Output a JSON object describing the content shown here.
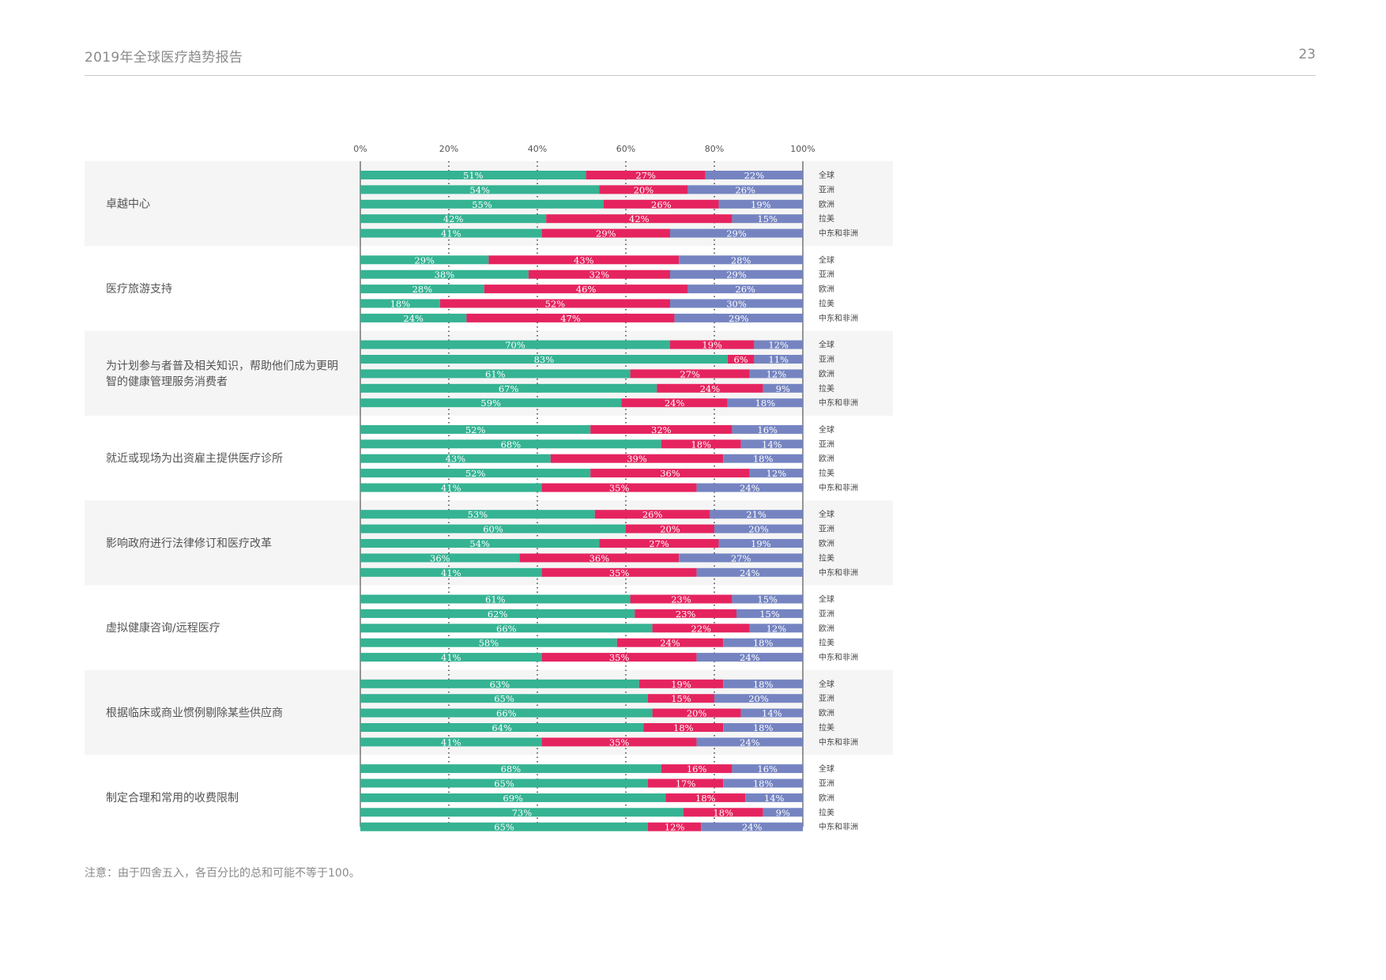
{
  "header": {
    "title": "2019年全球医疗趋势报告",
    "page_number": "23"
  },
  "note": "注意：由于四舍五入，各百分比的总和可能不等于100。",
  "colors": {
    "segment_1": "#35b393",
    "segment_2": "#e5245f",
    "segment_3": "#7584c1",
    "band": "#f5f5f5"
  },
  "chart_data": {
    "type": "bar",
    "orientation": "horizontal",
    "stacked": "percent",
    "title": "",
    "xlabel": "",
    "ylabel": "",
    "xlim": [
      0,
      100
    ],
    "x_ticks": [
      "0%",
      "20%",
      "40%",
      "60%",
      "80%",
      "100%"
    ],
    "grid": "dotted vertical gridlines at 20% steps",
    "regions": [
      "全球",
      "亚洲",
      "欧洲",
      "拉美",
      "中东和非洲"
    ],
    "groups": [
      {
        "label": "卓越中心",
        "rows": [
          [
            51,
            27,
            22
          ],
          [
            54,
            20,
            26
          ],
          [
            55,
            26,
            19
          ],
          [
            42,
            42,
            15
          ],
          [
            41,
            29,
            29
          ]
        ]
      },
      {
        "label": "医疗旅游支持",
        "rows": [
          [
            29,
            43,
            28
          ],
          [
            38,
            32,
            29
          ],
          [
            28,
            46,
            26
          ],
          [
            18,
            52,
            30
          ],
          [
            24,
            47,
            29
          ]
        ]
      },
      {
        "label": "为计划参与者普及相关知识，帮助他们成为更明智的健康管理服务消费者",
        "label_lines": [
          "为计划参与者普及相关知识，帮助他们成为更明",
          "智的健康管理服务消费者"
        ],
        "rows": [
          [
            70,
            19,
            12
          ],
          [
            83,
            6,
            11
          ],
          [
            61,
            27,
            12
          ],
          [
            67,
            24,
            9
          ],
          [
            59,
            24,
            18
          ]
        ]
      },
      {
        "label": "就近或现场为出资雇主提供医疗诊所",
        "rows": [
          [
            52,
            32,
            16
          ],
          [
            68,
            18,
            14
          ],
          [
            43,
            39,
            18
          ],
          [
            52,
            36,
            12
          ],
          [
            41,
            35,
            24
          ]
        ]
      },
      {
        "label": "影响政府进行法律修订和医疗改革",
        "rows": [
          [
            53,
            26,
            21
          ],
          [
            60,
            20,
            20
          ],
          [
            54,
            27,
            19
          ],
          [
            36,
            36,
            27
          ],
          [
            41,
            35,
            24
          ]
        ]
      },
      {
        "label": "虚拟健康咨询/远程医疗",
        "rows": [
          [
            61,
            23,
            15
          ],
          [
            62,
            23,
            15
          ],
          [
            66,
            22,
            12
          ],
          [
            58,
            24,
            18
          ],
          [
            41,
            35,
            24
          ]
        ]
      },
      {
        "label": "根据临床或商业惯例剔除某些供应商",
        "rows": [
          [
            63,
            19,
            18
          ],
          [
            65,
            15,
            20
          ],
          [
            66,
            20,
            14
          ],
          [
            64,
            18,
            18
          ],
          [
            41,
            35,
            24
          ]
        ]
      },
      {
        "label": "制定合理和常用的收费限制",
        "rows": [
          [
            68,
            16,
            16
          ],
          [
            65,
            17,
            18
          ],
          [
            69,
            18,
            14
          ],
          [
            73,
            18,
            9
          ],
          [
            65,
            12,
            24
          ]
        ]
      }
    ]
  }
}
